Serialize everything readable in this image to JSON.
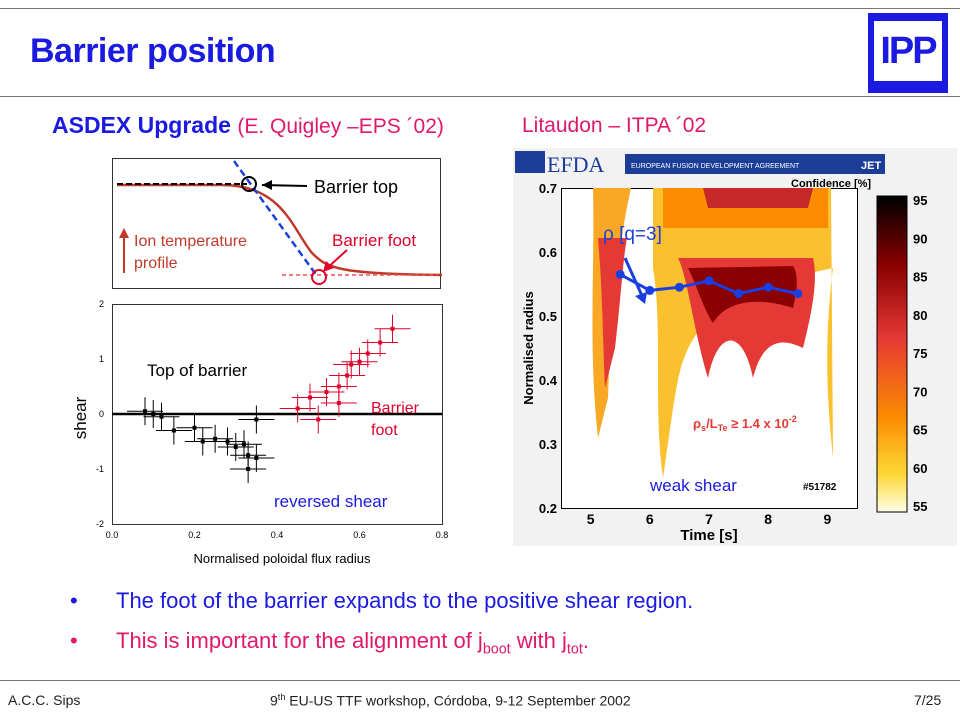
{
  "header": {
    "title": "Barrier position",
    "logo_text": "IPP"
  },
  "left_panel": {
    "heading": "ASDEX Upgrade",
    "citation": "(E. Quigley –EPS ´02)",
    "profile": {
      "barrier_top": "Barrier top",
      "barrier_foot": "Barrier foot",
      "ion_temp_line1": "Ion temperature",
      "ion_temp_line2": "profile"
    },
    "chart_data": {
      "type": "scatter",
      "xlabel": "Normalised poloidal flux radius",
      "ylabel": "shear",
      "xlim": [
        0.0,
        0.8
      ],
      "ylim": [
        -2,
        2
      ],
      "x_ticks": [
        "0.0",
        "0.2",
        "0.4",
        "0.6",
        "0.8"
      ],
      "y_ticks": [
        "2",
        "1",
        "0",
        "-1",
        "-2"
      ],
      "annotations": [
        "Top of barrier",
        "Barrier",
        "foot",
        "reversed shear"
      ],
      "series": [
        {
          "points": [
            [
              0.08,
              0.05
            ],
            [
              0.1,
              0.0
            ],
            [
              0.12,
              -0.05
            ],
            [
              0.15,
              -0.3
            ],
            [
              0.2,
              -0.25
            ],
            [
              0.22,
              -0.5
            ],
            [
              0.25,
              -0.45
            ],
            [
              0.28,
              -0.5
            ],
            [
              0.3,
              -0.6
            ],
            [
              0.32,
              -0.55
            ],
            [
              0.33,
              -0.75
            ],
            [
              0.33,
              -1.0
            ],
            [
              0.35,
              -0.1
            ],
            [
              0.35,
              -0.8
            ]
          ]
        },
        {
          "points": [
            [
              0.45,
              0.1
            ],
            [
              0.48,
              0.3
            ],
            [
              0.52,
              0.4
            ],
            [
              0.55,
              0.5
            ],
            [
              0.57,
              0.7
            ],
            [
              0.58,
              0.9
            ],
            [
              0.6,
              0.95
            ],
            [
              0.62,
              1.1
            ],
            [
              0.65,
              1.3
            ],
            [
              0.68,
              1.55
            ],
            [
              0.5,
              -0.1
            ],
            [
              0.55,
              0.2
            ]
          ]
        }
      ]
    }
  },
  "right_panel": {
    "citation": "Litaudon – ITPA ´02",
    "efda_text": "EFDA",
    "efda_banner": "EUROPEAN FUSION DEVELOPMENT AGREEMENT",
    "jet_text": "JET",
    "confidence_label": "Confidence [%]",
    "rho_label": "ρ [q=3]",
    "rhos_label_a": "ρ",
    "rhos_sub_s": "s",
    "rhos_label_b": "/L",
    "rhos_sub_te": "Te",
    "rhos_label_c": " ≥ 1.4 x 10",
    "rhos_sup": "-2",
    "weak_shear": "weak shear",
    "shot": "#51782",
    "chart_data": {
      "type": "heatmap",
      "xlabel": "Time [s]",
      "ylabel": "Normalised radius",
      "xlim": [
        4.5,
        9.5
      ],
      "ylim": [
        0.2,
        0.7
      ],
      "x_ticks": [
        "5",
        "6",
        "7",
        "8",
        "9"
      ],
      "y_ticks": [
        "0.7",
        "0.6",
        "0.5",
        "0.4",
        "0.3",
        "0.2"
      ],
      "colorbar_ticks": [
        "95",
        "90",
        "85",
        "80",
        "75",
        "70",
        "65",
        "60",
        "55"
      ],
      "series": [
        {
          "name": "ρ [q=3]",
          "x": [
            5.5,
            6.0,
            6.5,
            7.0,
            7.5,
            8.0,
            8.5
          ],
          "y": [
            0.565,
            0.54,
            0.545,
            0.555,
            0.535,
            0.545,
            0.535
          ]
        }
      ]
    }
  },
  "bullets": [
    {
      "symbol": "•",
      "text": "The foot of the barrier expands to the positive shear region."
    },
    {
      "symbol": "•",
      "text_a": "This is important for the alignment of j",
      "sub_a": "boot",
      "text_b": " with j",
      "sub_b": "tot",
      "text_c": "."
    }
  ],
  "footer": {
    "left": "A.C.C. Sips",
    "center_a": "9",
    "center_sup": "th",
    "center_b": " EU-US TTF workshop, Córdoba, 9-12 September 2002",
    "right": "7/25"
  }
}
